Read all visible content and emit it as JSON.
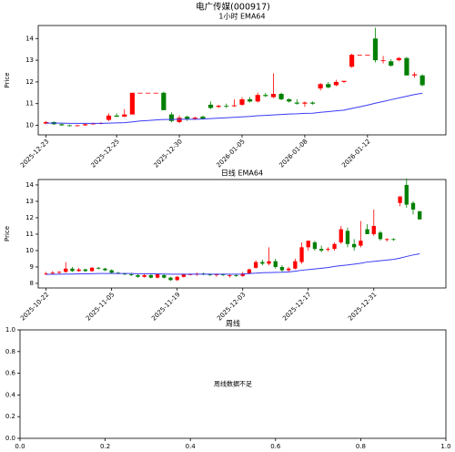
{
  "title": "电广传媒(000917)",
  "chart_data": [
    {
      "type": "candlestick",
      "title": "1小时 EMA64",
      "ylabel": "Price",
      "open": [
        10.08,
        10.15,
        10.05,
        10.0,
        9.98,
        10.0,
        10.05,
        10.08,
        10.25,
        10.45,
        10.4,
        10.5,
        11.5,
        11.5,
        11.5,
        11.5,
        10.5,
        10.15,
        10.4,
        10.3,
        10.4,
        10.95,
        10.85,
        10.9,
        10.88,
        10.95,
        11.2,
        11.1,
        11.4,
        11.3,
        11.45,
        11.2,
        11.05,
        11.0,
        11.05,
        11.7,
        11.9,
        11.85,
        12.0,
        12.7,
        13.25,
        13.25,
        14.0,
        13.0,
        12.95,
        13.0,
        13.1,
        12.3,
        12.3
      ],
      "high": [
        10.2,
        10.18,
        10.08,
        10.03,
        10.02,
        10.08,
        10.12,
        10.15,
        10.55,
        10.55,
        10.75,
        11.5,
        11.5,
        11.5,
        11.5,
        11.55,
        10.6,
        10.45,
        10.45,
        10.4,
        10.45,
        11.1,
        10.95,
        11.0,
        11.2,
        11.3,
        11.3,
        11.5,
        11.5,
        12.4,
        11.5,
        11.25,
        11.2,
        11.1,
        11.1,
        11.95,
        12.0,
        12.1,
        12.05,
        13.3,
        13.25,
        13.25,
        14.5,
        13.2,
        13.05,
        13.15,
        13.15,
        12.45,
        12.35
      ],
      "low": [
        10.05,
        10.02,
        9.98,
        9.95,
        9.95,
        9.98,
        10.03,
        10.05,
        10.2,
        10.38,
        10.38,
        10.5,
        11.5,
        11.5,
        11.5,
        10.7,
        10.15,
        10.1,
        10.2,
        10.25,
        10.28,
        10.75,
        10.8,
        10.8,
        10.85,
        10.9,
        11.05,
        11.05,
        11.3,
        11.25,
        11.15,
        11.05,
        10.95,
        10.85,
        10.95,
        11.6,
        11.7,
        11.8,
        11.95,
        12.65,
        13.25,
        13.25,
        12.9,
        12.85,
        12.7,
        12.95,
        12.3,
        12.2,
        11.8
      ],
      "close": [
        10.15,
        10.05,
        10.0,
        9.98,
        10.0,
        10.05,
        10.08,
        10.1,
        10.45,
        10.4,
        10.5,
        11.5,
        11.5,
        11.5,
        11.5,
        10.7,
        10.2,
        10.35,
        10.3,
        10.35,
        10.3,
        10.8,
        10.9,
        10.88,
        10.92,
        11.2,
        11.1,
        11.4,
        11.35,
        11.45,
        11.2,
        11.1,
        11.0,
        11.05,
        11.0,
        11.9,
        11.75,
        12.0,
        12.05,
        13.25,
        13.25,
        13.25,
        13.0,
        13.0,
        12.75,
        13.1,
        12.3,
        12.35,
        11.85
      ],
      "up_color": "#ff0000",
      "down_color": "#008000",
      "ema": {
        "color": "#3b3bf5",
        "values": [
          10.1,
          10.1,
          10.1,
          10.09,
          10.09,
          10.09,
          10.09,
          10.09,
          10.1,
          10.11,
          10.12,
          10.16,
          10.2,
          10.22,
          10.25,
          10.27,
          10.27,
          10.28,
          10.28,
          10.28,
          10.29,
          10.31,
          10.33,
          10.35,
          10.37,
          10.39,
          10.41,
          10.44,
          10.46,
          10.48,
          10.5,
          10.52,
          10.53,
          10.55,
          10.56,
          10.6,
          10.63,
          10.67,
          10.7,
          10.78,
          10.85,
          10.93,
          11.02,
          11.1,
          11.18,
          11.26,
          11.34,
          11.42,
          11.48
        ]
      },
      "xlim": [
        -1,
        51
      ],
      "ylim": [
        9.56,
        14.6
      ],
      "xticks": [
        {
          "value": 0,
          "label": "2025-12-23"
        },
        {
          "value": 9,
          "label": "2025-12-25"
        },
        {
          "value": 17,
          "label": "2025-12-30"
        },
        {
          "value": 25,
          "label": "2026-01-05"
        },
        {
          "value": 33,
          "label": "2026-01-08"
        },
        {
          "value": 41,
          "label": "2026-01-12"
        }
      ],
      "yticks": [
        10,
        11,
        12,
        13,
        14
      ]
    },
    {
      "type": "candlestick",
      "title": "日线 EMA64",
      "ylabel": "Price",
      "open": [
        8.55,
        8.6,
        8.65,
        8.7,
        8.9,
        8.75,
        8.85,
        8.75,
        8.95,
        8.9,
        8.8,
        8.65,
        8.6,
        8.55,
        8.5,
        8.4,
        8.5,
        8.35,
        8.5,
        8.35,
        8.2,
        8.4,
        8.55,
        8.55,
        8.6,
        8.55,
        8.5,
        8.55,
        8.45,
        8.5,
        8.45,
        8.6,
        8.95,
        9.3,
        9.2,
        9.35,
        9.0,
        8.8,
        8.9,
        9.3,
        10.2,
        10.5,
        10.1,
        10.05,
        10.1,
        10.5,
        11.2,
        10.4,
        10.3,
        11.3,
        11.0,
        11.1,
        10.65,
        10.7,
        12.9,
        14.0,
        12.9,
        12.4
      ],
      "high": [
        8.7,
        8.75,
        8.75,
        9.3,
        9.0,
        8.95,
        8.9,
        9.0,
        9.0,
        8.95,
        8.85,
        8.7,
        8.65,
        8.65,
        8.55,
        8.6,
        8.55,
        8.6,
        8.55,
        8.4,
        8.45,
        8.6,
        8.6,
        8.65,
        8.65,
        8.6,
        8.6,
        8.6,
        8.55,
        8.55,
        8.7,
        8.9,
        9.4,
        9.45,
        10.2,
        9.5,
        9.1,
        9.0,
        9.5,
        10.5,
        10.6,
        10.6,
        10.3,
        10.2,
        10.5,
        11.5,
        11.4,
        10.7,
        11.8,
        11.6,
        12.5,
        11.2,
        10.75,
        10.75,
        13.3,
        14.4,
        13.0,
        12.4
      ],
      "low": [
        8.5,
        8.55,
        8.55,
        8.65,
        8.7,
        8.7,
        8.7,
        8.7,
        8.85,
        8.75,
        8.6,
        8.55,
        8.5,
        8.45,
        8.35,
        8.35,
        8.3,
        8.3,
        8.3,
        8.15,
        8.15,
        8.35,
        8.5,
        8.45,
        8.5,
        8.45,
        8.4,
        8.45,
        8.35,
        8.4,
        8.4,
        8.55,
        8.9,
        9.1,
        9.1,
        8.9,
        8.7,
        8.7,
        8.85,
        9.2,
        10.0,
        10.0,
        9.9,
        9.95,
        10.0,
        10.4,
        10.2,
        10.0,
        10.2,
        11.0,
        10.9,
        10.6,
        10.55,
        10.6,
        12.7,
        12.6,
        12.2,
        11.9
      ],
      "close": [
        8.6,
        8.65,
        8.7,
        8.9,
        8.75,
        8.85,
        8.75,
        8.95,
        8.9,
        8.8,
        8.65,
        8.6,
        8.55,
        8.5,
        8.4,
        8.5,
        8.35,
        8.55,
        8.35,
        8.2,
        8.4,
        8.55,
        8.55,
        8.6,
        8.55,
        8.5,
        8.55,
        8.5,
        8.5,
        8.45,
        8.6,
        8.85,
        9.3,
        9.2,
        9.35,
        9.0,
        8.8,
        8.9,
        9.35,
        10.2,
        10.6,
        10.1,
        10.0,
        10.1,
        10.4,
        11.3,
        10.4,
        10.2,
        10.6,
        11.0,
        11.5,
        10.7,
        10.7,
        10.65,
        13.3,
        12.8,
        12.5,
        11.9
      ],
      "up_color": "#ff0000",
      "down_color": "#008000",
      "ema": {
        "color": "#3b3bf5",
        "values": [
          8.55,
          8.55,
          8.56,
          8.57,
          8.57,
          8.58,
          8.58,
          8.59,
          8.6,
          8.6,
          8.6,
          8.6,
          8.6,
          8.6,
          8.59,
          8.59,
          8.58,
          8.58,
          8.57,
          8.56,
          8.56,
          8.56,
          8.56,
          8.56,
          8.56,
          8.56,
          8.56,
          8.56,
          8.56,
          8.56,
          8.57,
          8.6,
          8.62,
          8.65,
          8.66,
          8.67,
          8.68,
          8.7,
          8.74,
          8.8,
          8.84,
          8.88,
          8.92,
          8.96,
          9.03,
          9.08,
          9.12,
          9.17,
          9.23,
          9.3,
          9.34,
          9.38,
          9.42,
          9.46,
          9.54,
          9.64,
          9.73,
          9.8
        ]
      },
      "xlim": [
        -1.2,
        61
      ],
      "ylim": [
        7.72,
        14.33
      ],
      "xticks": [
        {
          "value": 0,
          "label": "2025-10-22"
        },
        {
          "value": 10,
          "label": "2025-11-05"
        },
        {
          "value": 20,
          "label": "2025-11-19"
        },
        {
          "value": 30,
          "label": "2025-12-03"
        },
        {
          "value": 40,
          "label": "2025-12-17"
        },
        {
          "value": 50,
          "label": "2025-12-31"
        }
      ],
      "yticks": [
        8,
        9,
        10,
        11,
        12,
        13,
        14
      ]
    },
    {
      "type": "empty",
      "title": "周线",
      "message": "周线数据不足",
      "xlim": [
        0,
        1
      ],
      "ylim": [
        0,
        1
      ],
      "xticks": [
        {
          "value": 0,
          "label": "0.0"
        },
        {
          "value": 0.2,
          "label": "0.2"
        },
        {
          "value": 0.4,
          "label": "0.4"
        },
        {
          "value": 0.6,
          "label": "0.6"
        },
        {
          "value": 0.8,
          "label": "0.8"
        },
        {
          "value": 1,
          "label": "1.0"
        }
      ],
      "yticks": [
        {
          "value": 0,
          "label": "0.0"
        },
        {
          "value": 0.2,
          "label": "0.2"
        },
        {
          "value": 0.4,
          "label": "0.4"
        },
        {
          "value": 0.6,
          "label": "0.6"
        },
        {
          "value": 0.8,
          "label": "0.8"
        },
        {
          "value": 1,
          "label": "1.0"
        }
      ]
    }
  ]
}
